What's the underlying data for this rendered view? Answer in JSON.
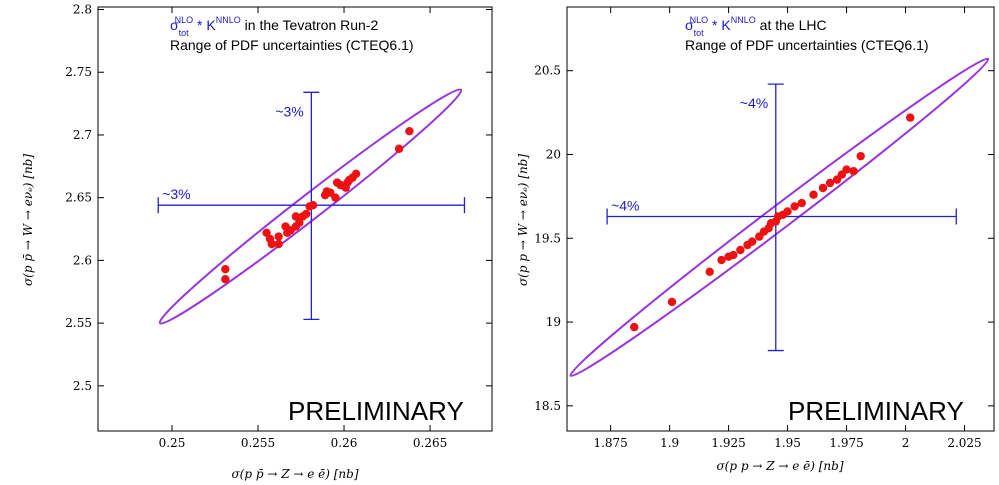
{
  "chart_data": [
    {
      "type": "scatter",
      "title_parts": {
        "sigma": "σ",
        "sub": "tot",
        "sup": "NLO",
        "mid": " * K",
        "sup2": "NNLO",
        "tail": " in the Tevatron Run-2"
      },
      "subtitle": "Range of PDF uncertainties (CTEQ6.1)",
      "xlabel": "σ(p p̄ → Z → e ē)  [nb]",
      "ylabel": "σ(p p̄ → W → eνₑ)  [nb]",
      "watermark": "PRELIMINARY",
      "xlim": [
        0.2457,
        0.2686
      ],
      "ylim": [
        2.464,
        2.802
      ],
      "xticks": [
        0.25,
        0.255,
        0.26,
        0.265
      ],
      "xtick_labels": [
        "0.25",
        "0.255",
        "0.26",
        "0.265"
      ],
      "yticks": [
        2.5,
        2.55,
        2.6,
        2.65,
        2.7,
        2.75,
        2.8
      ],
      "ytick_labels": [
        "2.5",
        "2.55",
        "2.6",
        "2.65",
        "2.7",
        "2.75",
        "2.8"
      ],
      "central": [
        0.2581,
        2.644
      ],
      "error_bars": {
        "x": [
          0.2492,
          0.267
        ],
        "y": [
          2.553,
          2.734
        ]
      },
      "x_error_label": "~3%",
      "y_error_label": "~3%",
      "ellipse": {
        "from": [
          0.2493,
          2.55
        ],
        "to": [
          0.2668,
          2.736
        ],
        "width": 0.032
      },
      "points": [
        [
          0.2531,
          2.585
        ],
        [
          0.2531,
          2.593
        ],
        [
          0.2555,
          2.622
        ],
        [
          0.2557,
          2.617
        ],
        [
          0.2558,
          2.613
        ],
        [
          0.2562,
          2.619
        ],
        [
          0.2562,
          2.613
        ],
        [
          0.2566,
          2.627
        ],
        [
          0.2567,
          2.622
        ],
        [
          0.2569,
          2.624
        ],
        [
          0.2572,
          2.627
        ],
        [
          0.2572,
          2.635
        ],
        [
          0.2574,
          2.63
        ],
        [
          0.2576,
          2.635
        ],
        [
          0.2578,
          2.637
        ],
        [
          0.258,
          2.643
        ],
        [
          0.2582,
          2.644
        ],
        [
          0.2589,
          2.652
        ],
        [
          0.259,
          2.655
        ],
        [
          0.2592,
          2.654
        ],
        [
          0.2595,
          2.65
        ],
        [
          0.2596,
          2.662
        ],
        [
          0.2598,
          2.66
        ],
        [
          0.2601,
          2.658
        ],
        [
          0.2602,
          2.662
        ],
        [
          0.2603,
          2.664
        ],
        [
          0.2605,
          2.666
        ],
        [
          0.2607,
          2.669
        ],
        [
          0.2632,
          2.689
        ],
        [
          0.2638,
          2.703
        ]
      ]
    },
    {
      "type": "scatter",
      "title_parts": {
        "sigma": "σ",
        "sub": "tot",
        "sup": "NLO",
        "mid": " * K",
        "sup2": "NNLO",
        "tail": " at the LHC"
      },
      "subtitle": "Range of PDF uncertainties (CTEQ6.1)",
      "xlabel": "σ(p p → Z → e ē)  [nb]",
      "ylabel": "σ(p p → W → eνₑ)  [nb]",
      "watermark": "PRELIMINARY",
      "xlim": [
        1.8565,
        2.0375
      ],
      "ylim": [
        18.35,
        20.88
      ],
      "xticks": [
        1.875,
        1.9,
        1.925,
        1.95,
        1.975,
        2.0,
        2.025
      ],
      "xtick_labels": [
        "1.875",
        "1.9",
        "1.925",
        "1.95",
        "1.975",
        "2",
        "2.025"
      ],
      "yticks": [
        18.5,
        19.0,
        19.5,
        20.0,
        20.5
      ],
      "ytick_labels": [
        "18.5",
        "19",
        "19.5",
        "20",
        "20.5"
      ],
      "central": [
        1.945,
        19.63
      ],
      "error_bars": {
        "x": [
          1.8735,
          2.0215
        ],
        "y": [
          18.83,
          20.42
        ]
      },
      "x_error_label": "~4%",
      "y_error_label": "~4%",
      "ellipse": {
        "from": [
          1.858,
          18.68
        ],
        "to": [
          2.035,
          20.57
        ],
        "width": 0.022
      },
      "points": [
        [
          1.885,
          18.97
        ],
        [
          1.901,
          19.12
        ],
        [
          1.917,
          19.3
        ],
        [
          1.922,
          19.37
        ],
        [
          1.925,
          19.39
        ],
        [
          1.927,
          19.4
        ],
        [
          1.93,
          19.43
        ],
        [
          1.933,
          19.46
        ],
        [
          1.935,
          19.48
        ],
        [
          1.938,
          19.51
        ],
        [
          1.94,
          19.54
        ],
        [
          1.942,
          19.56
        ],
        [
          1.943,
          19.59
        ],
        [
          1.945,
          19.6
        ],
        [
          1.946,
          19.63
        ],
        [
          1.948,
          19.64
        ],
        [
          1.95,
          19.66
        ],
        [
          1.953,
          19.69
        ],
        [
          1.956,
          19.71
        ],
        [
          1.961,
          19.76
        ],
        [
          1.965,
          19.8
        ],
        [
          1.968,
          19.83
        ],
        [
          1.971,
          19.85
        ],
        [
          1.973,
          19.88
        ],
        [
          1.975,
          19.91
        ],
        [
          1.978,
          19.9
        ],
        [
          1.981,
          19.99
        ],
        [
          2.002,
          20.22
        ]
      ]
    }
  ],
  "colors": {
    "points": "#ee1111",
    "ellipse": "#9933dd",
    "bars": "#2222cc"
  }
}
